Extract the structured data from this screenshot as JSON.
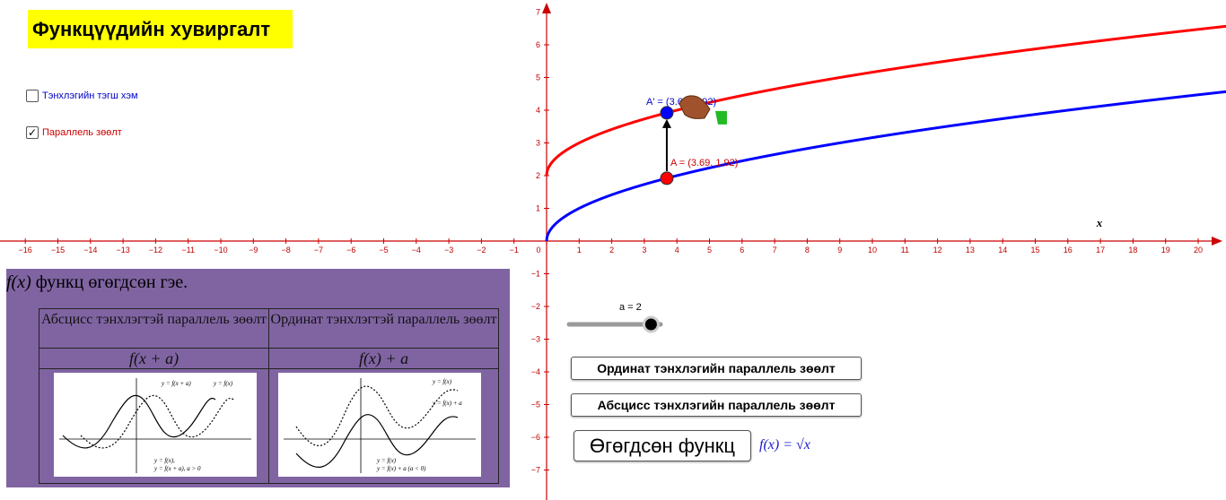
{
  "title": "Функцүүдийн хувиргалт",
  "checkboxes": [
    {
      "label": "Тэнхлэгийн тэгш хэм",
      "checked": false,
      "color": "#0000cc"
    },
    {
      "label": "Параллель зөөлт",
      "checked": true,
      "color": "#cc0000"
    }
  ],
  "axes": {
    "x_label": "x",
    "x_ticks": [
      "−16",
      "−15",
      "−14",
      "−13",
      "−12",
      "−11",
      "−10",
      "−9",
      "−8",
      "−7",
      "−6",
      "−5",
      "−4",
      "−3",
      "−2",
      "−1",
      "0",
      "1",
      "2",
      "3",
      "4",
      "5",
      "6",
      "7",
      "8",
      "9",
      "10",
      "11",
      "12",
      "13",
      "14",
      "15",
      "16",
      "17",
      "18",
      "19",
      "20"
    ],
    "y_ticks": [
      "7",
      "6",
      "5",
      "4",
      "3",
      "2",
      "1",
      "−1",
      "−2",
      "−3",
      "−4",
      "−5",
      "−6",
      "−7"
    ],
    "color": "#cc0000"
  },
  "points": {
    "A": {
      "label": "A = (3.69, 1.92)",
      "x": 3.69,
      "y": 1.92,
      "color": "#ff0000"
    },
    "A_prime": {
      "label": "A' = (3.69, 3.92)",
      "x": 3.69,
      "y": 3.92,
      "color": "#0000ff"
    }
  },
  "curves": {
    "base": {
      "formula": "sqrt(x)",
      "color": "#0000ff"
    },
    "shifted": {
      "formula": "sqrt(x)+a",
      "color": "#ff0000"
    }
  },
  "slider": {
    "label": "a = 2",
    "value": 2,
    "min": -5,
    "max": 5
  },
  "buttons": {
    "ordinate": "Ординат тэнхлэгийн параллель зөөлт",
    "abscissa": "Абсцисс тэнхлэгийн параллель зөөлт",
    "given": "Өгөгдсөн функц"
  },
  "given_formula": "f(x) = √x",
  "reference": {
    "caption_fx": "f(x)",
    "caption_text": " функц  өгөгдсөн гэе.",
    "col1_head": "Абсцисс тэнхлэгтэй параллель зөөлт",
    "col2_head": "Ординат тэнхлэгтэй параллель зөөлт",
    "col1_formula": "f(x + a)",
    "col2_formula": "f(x) + a",
    "col1_legend": [
      "y = f(x + a)",
      "y = f(x)"
    ],
    "col2_legend": [
      "y = f(x)",
      "y = f(x) + a"
    ],
    "col1_caption": [
      "y = f(x),",
      "y = f(x + a), a > 0"
    ],
    "col2_caption": [
      "y = f(x)",
      "y = f(x) + a (a < 0)"
    ],
    "panel_color": "#8064a2"
  }
}
